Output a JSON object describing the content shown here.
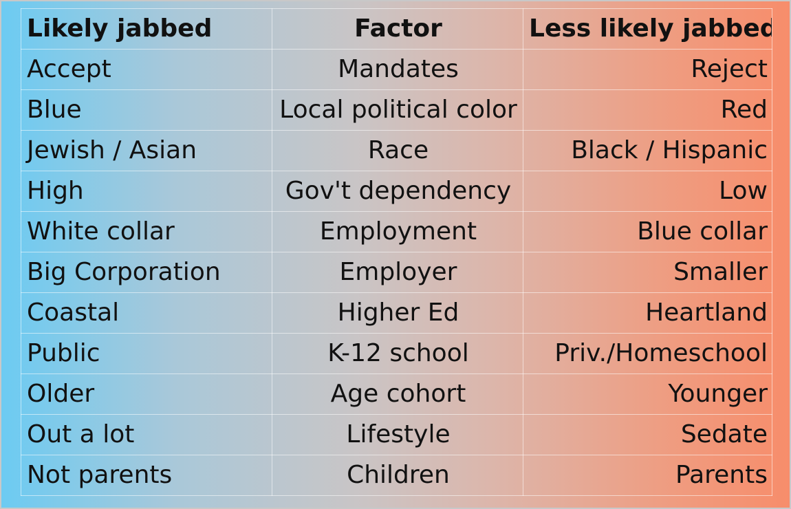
{
  "headers": {
    "likely": "Likely jabbed",
    "factor": "Factor",
    "less_likely": "Less likely jabbed"
  },
  "rows": [
    {
      "likely": "Accept",
      "factor": "Mandates",
      "less_likely": "Reject"
    },
    {
      "likely": "Blue",
      "factor": "Local political color",
      "less_likely": "Red"
    },
    {
      "likely": "Jewish / Asian",
      "factor": "Race",
      "less_likely": "Black / Hispanic"
    },
    {
      "likely": "High",
      "factor": "Gov't dependency",
      "less_likely": "Low"
    },
    {
      "likely": "White collar",
      "factor": "Employment",
      "less_likely": "Blue collar"
    },
    {
      "likely": "Big Corporation",
      "factor": "Employer",
      "less_likely": "Smaller"
    },
    {
      "likely": "Coastal",
      "factor": "Higher Ed",
      "less_likely": "Heartland"
    },
    {
      "likely": "Public",
      "factor": "K-12 school",
      "less_likely": "Priv./Homeschool"
    },
    {
      "likely": "Older",
      "factor": "Age cohort",
      "less_likely": "Younger"
    },
    {
      "likely": "Out a lot",
      "factor": "Lifestyle",
      "less_likely": "Sedate"
    },
    {
      "likely": "Not parents",
      "factor": "Children",
      "less_likely": "Parents"
    }
  ],
  "colors": {
    "left_gradient": "#6ccbf2",
    "right_gradient": "#f78d6b",
    "text": "#111111"
  }
}
